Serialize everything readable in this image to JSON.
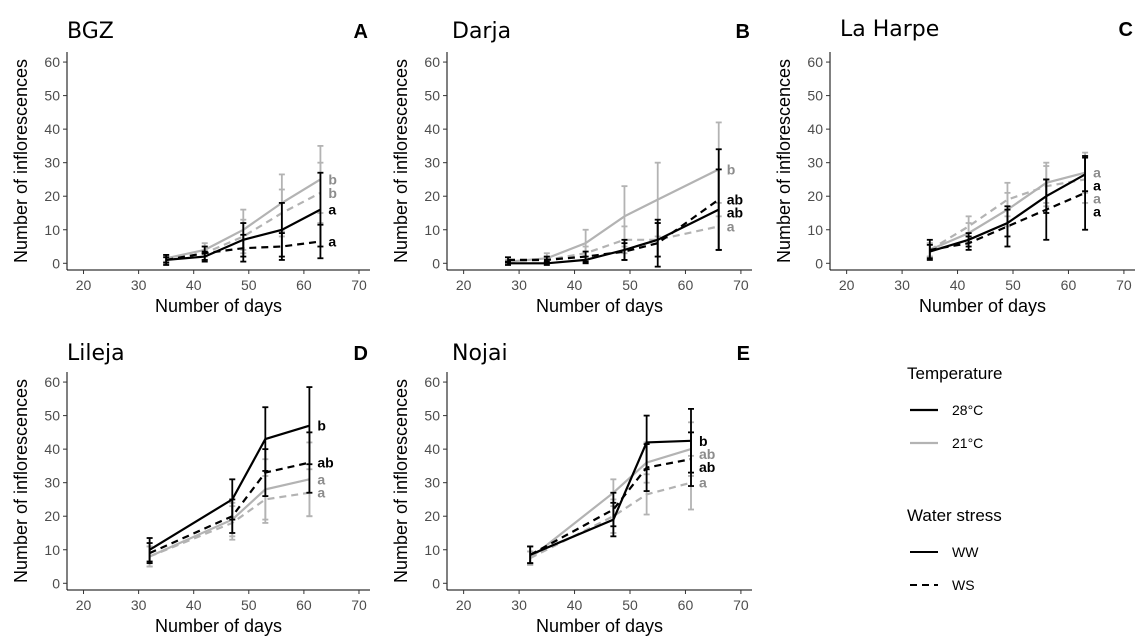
{
  "colors": {
    "temp_28": "#000000",
    "temp_21": "#b3b3b3",
    "label_28": "#000000",
    "label_21": "#8c8c8c"
  },
  "chart_data": [
    {
      "type": "line",
      "title": "BGZ",
      "panel": "A",
      "xlabel": "Number of days",
      "ylabel": "Number of inflorescences",
      "xlim": [
        17,
        72
      ],
      "ylim": [
        -2,
        63
      ],
      "xticks": [
        20,
        30,
        40,
        50,
        60,
        70
      ],
      "yticks": [
        0,
        10,
        20,
        30,
        40,
        50,
        60
      ],
      "series": [
        {
          "temperature": "28°C",
          "water": "WW",
          "x": [
            35,
            42,
            49,
            56,
            63
          ],
          "y": [
            1,
            2,
            7,
            10,
            16
          ],
          "err": [
            0.8,
            1.5,
            5,
            8,
            11
          ],
          "label": "a"
        },
        {
          "temperature": "28°C",
          "water": "WS",
          "x": [
            35,
            42,
            49,
            56,
            63
          ],
          "y": [
            1,
            3,
            4.5,
            5,
            6.5
          ],
          "err": [
            1.5,
            2,
            4,
            4,
            5
          ],
          "label": "a"
        },
        {
          "temperature": "21°C",
          "water": "WW",
          "x": [
            35,
            42,
            49,
            56,
            63
          ],
          "y": [
            1.5,
            4,
            10,
            18,
            25
          ],
          "err": [
            1,
            2,
            6,
            8.5,
            10
          ],
          "label": "b"
        },
        {
          "temperature": "21°C",
          "water": "WS",
          "x": [
            35,
            42,
            49,
            56,
            63
          ],
          "y": [
            1,
            3,
            8,
            15,
            21
          ],
          "err": [
            1,
            2,
            5,
            7,
            9
          ],
          "label": "b"
        }
      ]
    },
    {
      "type": "line",
      "title": "Darja",
      "panel": "B",
      "xlabel": "Number of days",
      "ylabel": "Number of inflorescences",
      "xlim": [
        17,
        72
      ],
      "ylim": [
        -2,
        63
      ],
      "xticks": [
        20,
        30,
        40,
        50,
        60,
        70
      ],
      "yticks": [
        0,
        10,
        20,
        30,
        40,
        50,
        60
      ],
      "series": [
        {
          "temperature": "28°C",
          "water": "WW",
          "x": [
            28,
            35,
            42,
            49,
            55,
            66
          ],
          "y": [
            0,
            0,
            1,
            4,
            7,
            16
          ],
          "err": [
            0.5,
            0.5,
            1,
            3,
            5,
            12
          ],
          "label": "ab"
        },
        {
          "temperature": "28°C",
          "water": "WS",
          "x": [
            28,
            35,
            42,
            49,
            55,
            66
          ],
          "y": [
            1,
            1,
            2,
            3.5,
            6,
            19
          ],
          "err": [
            0.8,
            1,
            1.5,
            2.5,
            7,
            15
          ],
          "label": "ab"
        },
        {
          "temperature": "21°C",
          "water": "WW",
          "x": [
            28,
            35,
            42,
            49,
            55,
            66
          ],
          "y": [
            0.5,
            1.5,
            6,
            14,
            19,
            28
          ],
          "err": [
            0.5,
            1.5,
            4,
            9,
            11,
            14
          ],
          "label": "b"
        },
        {
          "temperature": "21°C",
          "water": "WS",
          "x": [
            28,
            35,
            42,
            49,
            55,
            66
          ],
          "y": [
            0.5,
            1,
            3,
            7,
            7,
            11
          ],
          "err": [
            0.5,
            1,
            2,
            4,
            5,
            7
          ],
          "label": "a"
        }
      ]
    },
    {
      "type": "line",
      "title": "La Harpe",
      "panel": "C",
      "xlabel": "Number of days",
      "ylabel": "Number of inflorescences",
      "xlim": [
        17,
        72
      ],
      "ylim": [
        -2,
        63
      ],
      "xticks": [
        20,
        30,
        40,
        50,
        60,
        70
      ],
      "yticks": [
        0,
        10,
        20,
        30,
        40,
        50,
        60
      ],
      "series": [
        {
          "temperature": "28°C",
          "water": "WW",
          "x": [
            35,
            42,
            49,
            56,
            63
          ],
          "y": [
            3.5,
            7,
            12,
            20,
            26.5
          ],
          "err": [
            2,
            2,
            4,
            5,
            5
          ],
          "label": "a"
        },
        {
          "temperature": "28°C",
          "water": "WS",
          "x": [
            35,
            42,
            49,
            56,
            63
          ],
          "y": [
            4,
            6,
            11,
            16,
            21
          ],
          "err": [
            3,
            2,
            6,
            9,
            11
          ],
          "label": "a"
        },
        {
          "temperature": "21°C",
          "water": "WW",
          "x": [
            35,
            42,
            49,
            56,
            63
          ],
          "y": [
            4,
            9,
            16,
            24,
            27
          ],
          "err": [
            2,
            3,
            5,
            6,
            6
          ],
          "label": "a"
        },
        {
          "temperature": "21°C",
          "water": "WS",
          "x": [
            35,
            42,
            49,
            56,
            63
          ],
          "y": [
            4,
            11,
            19,
            23,
            25
          ],
          "err": [
            2,
            3,
            5,
            6,
            7
          ],
          "label": "a"
        }
      ]
    },
    {
      "type": "line",
      "title": "Lileja",
      "panel": "D",
      "xlabel": "Number of days",
      "ylabel": "Number of inflorescences",
      "xlim": [
        17,
        72
      ],
      "ylim": [
        -2,
        63
      ],
      "xticks": [
        20,
        30,
        40,
        50,
        60,
        70
      ],
      "yticks": [
        0,
        10,
        20,
        30,
        40,
        50,
        60
      ],
      "series": [
        {
          "temperature": "28°C",
          "water": "WW",
          "x": [
            32,
            47,
            53,
            61
          ],
          "y": [
            10,
            25,
            43,
            47
          ],
          "err": [
            3.5,
            6,
            9.5,
            11.5
          ],
          "label": "b"
        },
        {
          "temperature": "28°C",
          "water": "WS",
          "x": [
            32,
            47,
            53,
            61
          ],
          "y": [
            9,
            20,
            33,
            36
          ],
          "err": [
            3,
            5,
            7,
            9
          ],
          "label": "ab"
        },
        {
          "temperature": "21°C",
          "water": "WW",
          "x": [
            32,
            47,
            53,
            61
          ],
          "y": [
            8,
            19,
            28,
            31
          ],
          "err": [
            3,
            5,
            9,
            11
          ],
          "label": "a"
        },
        {
          "temperature": "21°C",
          "water": "WS",
          "x": [
            32,
            47,
            53,
            61
          ],
          "y": [
            8,
            18,
            25,
            27
          ],
          "err": [
            3,
            5,
            7,
            7
          ],
          "label": "a"
        }
      ]
    },
    {
      "type": "line",
      "title": "Nojai",
      "panel": "E",
      "xlabel": "Number of days",
      "ylabel": "Number of inflorescences",
      "xlim": [
        17,
        72
      ],
      "ylim": [
        -2,
        63
      ],
      "xticks": [
        20,
        30,
        40,
        50,
        60,
        70
      ],
      "yticks": [
        0,
        10,
        20,
        30,
        40,
        50,
        60
      ],
      "series": [
        {
          "temperature": "28°C",
          "water": "WW",
          "x": [
            32,
            47,
            53,
            61
          ],
          "y": [
            8.5,
            19,
            42,
            42.5
          ],
          "err": [
            2.5,
            5,
            8,
            9.5
          ],
          "label": "b"
        },
        {
          "temperature": "28°C",
          "water": "WS",
          "x": [
            32,
            47,
            53,
            61
          ],
          "y": [
            8.5,
            22,
            34.5,
            37
          ],
          "err": [
            2.5,
            5,
            7,
            8
          ],
          "label": "ab"
        },
        {
          "temperature": "21°C",
          "water": "WW",
          "x": [
            32,
            47,
            53,
            61
          ],
          "y": [
            7.5,
            27,
            36,
            40
          ],
          "err": [
            2,
            4,
            6,
            8
          ],
          "label": "ab"
        },
        {
          "temperature": "21°C",
          "water": "WS",
          "x": [
            32,
            47,
            53,
            61
          ],
          "y": [
            7.5,
            20,
            26.5,
            30
          ],
          "err": [
            2,
            5,
            6,
            8
          ],
          "label": "a"
        }
      ]
    }
  ],
  "legend": {
    "temperature_title": "Temperature",
    "temperature_items": [
      {
        "label": "28°C",
        "color": "#000000"
      },
      {
        "label": "21°C",
        "color": "#b3b3b3"
      }
    ],
    "water_title": "Water stress",
    "water_items": [
      {
        "label": "WW",
        "dash": "solid"
      },
      {
        "label": "WS",
        "dash": "dashed"
      }
    ]
  }
}
